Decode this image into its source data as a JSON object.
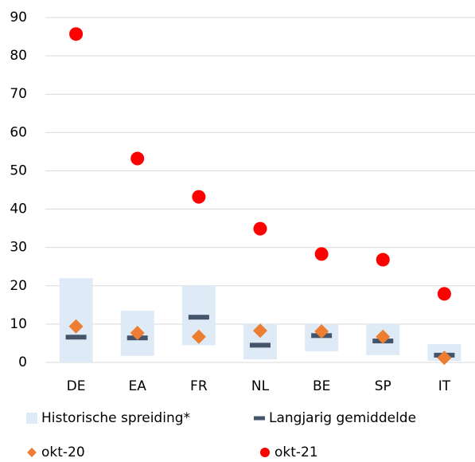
{
  "chart_data": {
    "type": "dot",
    "categories": [
      "DE",
      "EA",
      "FR",
      "NL",
      "BE",
      "SP",
      "IT"
    ],
    "ylim": [
      0,
      90
    ],
    "yticks": [
      0,
      10,
      20,
      30,
      40,
      50,
      60,
      70,
      80,
      90
    ],
    "grid": true,
    "legend": "bottom",
    "series": [
      {
        "name": "Historische spreiding*",
        "color": "#deebf7",
        "marker": "range",
        "low": [
          0,
          1.7,
          4.5,
          0.8,
          2.9,
          1.9,
          0.4
        ],
        "high": [
          22,
          13.5,
          20,
          10,
          10,
          10,
          4.8
        ]
      },
      {
        "name": "Langjarig gemiddelde",
        "color": "#44546a",
        "marker": "dash",
        "values": [
          6.6,
          6.4,
          11.8,
          4.5,
          7,
          5.6,
          1.9
        ]
      },
      {
        "name": "okt-20",
        "color": "#ed7d31",
        "marker": "diamond",
        "values": [
          9.4,
          7.7,
          6.7,
          8.3,
          8.1,
          6.7,
          1.2
        ]
      },
      {
        "name": "okt-21",
        "color": "#ff0000",
        "marker": "circle",
        "values": [
          85.7,
          53.2,
          43.2,
          34.9,
          28.3,
          26.8,
          17.9
        ]
      }
    ]
  }
}
